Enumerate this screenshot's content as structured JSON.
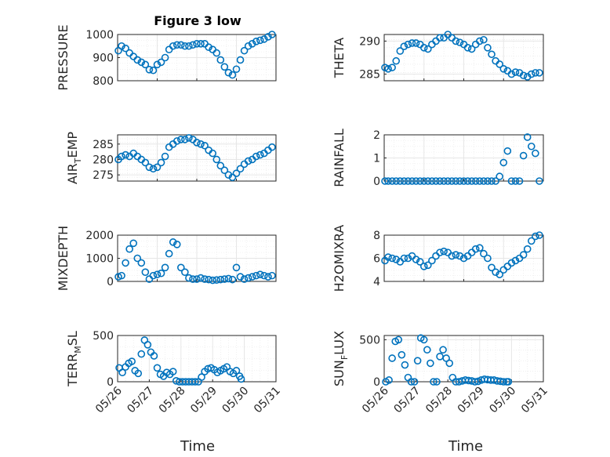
{
  "figure": {
    "title": "Figure 3 low",
    "xlabel": "Time"
  },
  "colors": {
    "marker": "#0072BD",
    "grid": "#E6E6E6",
    "axis": "#262626"
  },
  "chart_data": [
    {
      "type": "scatter",
      "ylabel": "PRESSURE",
      "ylim": [
        800,
        1000
      ],
      "yticks": [
        "800",
        "900",
        "1000"
      ],
      "xlim": [
        0,
        4
      ],
      "grid": true,
      "x": [
        0.02,
        0.1,
        0.2,
        0.3,
        0.4,
        0.5,
        0.6,
        0.7,
        0.8,
        0.9,
        1.0,
        1.1,
        1.2,
        1.3,
        1.4,
        1.5,
        1.6,
        1.7,
        1.8,
        1.9,
        2.0,
        2.1,
        2.2,
        2.3,
        2.4,
        2.5,
        2.6,
        2.7,
        2.8,
        2.9,
        3.0,
        3.1,
        3.2,
        3.3,
        3.4,
        3.5,
        3.6,
        3.7,
        3.8,
        3.9
      ],
      "y": [
        930,
        950,
        940,
        920,
        905,
        890,
        880,
        870,
        848,
        845,
        870,
        880,
        900,
        935,
        950,
        955,
        955,
        950,
        950,
        955,
        960,
        960,
        960,
        945,
        935,
        920,
        890,
        860,
        835,
        825,
        850,
        890,
        930,
        950,
        960,
        970,
        975,
        980,
        990,
        1000
      ]
    },
    {
      "type": "scatter",
      "ylabel": "THETA",
      "ylim": [
        284,
        291
      ],
      "yticks": [
        "285",
        "290"
      ],
      "xlim": [
        0,
        4
      ],
      "grid": true,
      "x": [
        0.02,
        0.1,
        0.2,
        0.3,
        0.4,
        0.5,
        0.6,
        0.7,
        0.8,
        0.9,
        1.0,
        1.1,
        1.2,
        1.3,
        1.4,
        1.5,
        1.6,
        1.7,
        1.8,
        1.9,
        2.0,
        2.1,
        2.2,
        2.3,
        2.4,
        2.5,
        2.6,
        2.7,
        2.8,
        2.9,
        3.0,
        3.1,
        3.2,
        3.3,
        3.4,
        3.5,
        3.6,
        3.7,
        3.8,
        3.9
      ],
      "y": [
        286,
        285.8,
        286,
        287,
        288.5,
        289.2,
        289.5,
        289.7,
        289.7,
        289.5,
        289,
        288.8,
        289.5,
        290,
        290.5,
        290.5,
        291,
        290.5,
        290,
        289.8,
        289.5,
        289,
        288.8,
        289.5,
        290,
        290.2,
        289,
        288,
        287,
        286.5,
        285.8,
        285.5,
        285,
        285.3,
        285.2,
        284.8,
        284.6,
        285,
        285.2,
        285.2
      ]
    },
    {
      "type": "scatter",
      "ylabel": "AIR_TEMP",
      "ylim": [
        273,
        288
      ],
      "yticks": [
        "275",
        "280",
        "285"
      ],
      "xlim": [
        0,
        4
      ],
      "grid": true,
      "x": [
        0.02,
        0.1,
        0.2,
        0.3,
        0.4,
        0.5,
        0.6,
        0.7,
        0.8,
        0.9,
        1.0,
        1.1,
        1.2,
        1.3,
        1.4,
        1.5,
        1.6,
        1.7,
        1.8,
        1.9,
        2.0,
        2.1,
        2.2,
        2.3,
        2.4,
        2.5,
        2.6,
        2.7,
        2.8,
        2.9,
        3.0,
        3.1,
        3.2,
        3.3,
        3.4,
        3.5,
        3.6,
        3.7,
        3.8,
        3.9
      ],
      "y": [
        280,
        281,
        281.5,
        281,
        282,
        281,
        280,
        279,
        277.5,
        277,
        277.5,
        279,
        281,
        284,
        285,
        286,
        286.5,
        286.5,
        287,
        286.5,
        285.5,
        285,
        284.5,
        283,
        282,
        280,
        278,
        276.5,
        275,
        274.2,
        275.5,
        277,
        278.5,
        279.5,
        280,
        281,
        281.5,
        282,
        283,
        284
      ]
    },
    {
      "type": "scatter",
      "ylabel": "RAINFALL",
      "ylim": [
        0,
        2
      ],
      "yticks": [
        "0",
        "1",
        "2"
      ],
      "xlim": [
        0,
        4
      ],
      "grid": true,
      "x": [
        0.02,
        0.1,
        0.2,
        0.3,
        0.4,
        0.5,
        0.6,
        0.7,
        0.8,
        0.9,
        1.0,
        1.1,
        1.2,
        1.3,
        1.4,
        1.5,
        1.6,
        1.7,
        1.8,
        1.9,
        2.0,
        2.1,
        2.2,
        2.3,
        2.4,
        2.5,
        2.6,
        2.7,
        2.8,
        2.9,
        3.0,
        3.1,
        3.2,
        3.3,
        3.4,
        3.5,
        3.6,
        3.7,
        3.8,
        3.9
      ],
      "y": [
        0,
        0,
        0,
        0,
        0,
        0,
        0,
        0,
        0,
        0,
        0,
        0,
        0,
        0,
        0,
        0,
        0,
        0,
        0,
        0,
        0,
        0,
        0,
        0,
        0,
        0,
        0,
        0,
        0,
        0.2,
        0.8,
        1.3,
        0,
        0,
        0,
        1.1,
        1.9,
        1.5,
        1.2,
        0
      ]
    },
    {
      "type": "scatter",
      "ylabel": "MIXDEPTH",
      "ylim": [
        0,
        2000
      ],
      "yticks": [
        "0",
        "1000",
        "2000"
      ],
      "xlim": [
        0,
        4
      ],
      "grid": true,
      "x": [
        0.02,
        0.1,
        0.2,
        0.3,
        0.4,
        0.5,
        0.6,
        0.7,
        0.8,
        0.9,
        1.0,
        1.1,
        1.2,
        1.3,
        1.4,
        1.5,
        1.6,
        1.7,
        1.8,
        1.9,
        2.0,
        2.1,
        2.2,
        2.3,
        2.4,
        2.5,
        2.6,
        2.7,
        2.8,
        2.9,
        3.0,
        3.1,
        3.2,
        3.3,
        3.4,
        3.5,
        3.6,
        3.7,
        3.8,
        3.9
      ],
      "y": [
        200,
        250,
        800,
        1400,
        1650,
        1000,
        800,
        400,
        100,
        250,
        300,
        350,
        600,
        1200,
        1700,
        1600,
        600,
        400,
        150,
        100,
        100,
        150,
        100,
        80,
        50,
        60,
        80,
        100,
        120,
        80,
        600,
        200,
        100,
        150,
        200,
        250,
        300,
        250,
        200,
        250
      ]
    },
    {
      "type": "scatter",
      "ylabel": "H2OMIXRA",
      "ylim": [
        4,
        8
      ],
      "yticks": [
        "4",
        "6",
        "8"
      ],
      "xlim": [
        0,
        4
      ],
      "grid": true,
      "x": [
        0.02,
        0.1,
        0.2,
        0.3,
        0.4,
        0.5,
        0.6,
        0.7,
        0.8,
        0.9,
        1.0,
        1.1,
        1.2,
        1.3,
        1.4,
        1.5,
        1.6,
        1.7,
        1.8,
        1.9,
        2.0,
        2.1,
        2.2,
        2.3,
        2.4,
        2.5,
        2.6,
        2.7,
        2.8,
        2.9,
        3.0,
        3.1,
        3.2,
        3.3,
        3.4,
        3.5,
        3.6,
        3.7,
        3.8,
        3.9
      ],
      "y": [
        5.8,
        6.1,
        6,
        5.9,
        5.7,
        6,
        6,
        6.2,
        5.9,
        5.7,
        5.3,
        5.4,
        5.8,
        6.2,
        6.5,
        6.6,
        6.5,
        6.2,
        6.3,
        6.2,
        6,
        6.2,
        6.5,
        6.8,
        6.9,
        6.4,
        6,
        5.2,
        4.8,
        4.6,
        5,
        5.3,
        5.6,
        5.8,
        6,
        6.3,
        6.8,
        7.5,
        7.9,
        8
      ]
    },
    {
      "type": "scatter",
      "ylabel": "TERR_MSL",
      "ylim": [
        0,
        500
      ],
      "yticks": [
        "0",
        "500"
      ],
      "xlim": [
        0,
        5
      ],
      "grid": true,
      "xticks": [
        "05/26",
        "05/27",
        "05/28",
        "05/29",
        "05/30",
        "05/31"
      ],
      "x": [
        0.05,
        0.15,
        0.25,
        0.35,
        0.45,
        0.55,
        0.65,
        0.75,
        0.85,
        0.95,
        1.05,
        1.15,
        1.25,
        1.35,
        1.45,
        1.55,
        1.65,
        1.75,
        1.85,
        1.95,
        2.05,
        2.15,
        2.25,
        2.35,
        2.45,
        2.55,
        2.65,
        2.75,
        2.85,
        2.95,
        3.05,
        3.15,
        3.25,
        3.35,
        3.45,
        3.55,
        3.65,
        3.75,
        3.85,
        3.9
      ],
      "y": [
        150,
        100,
        160,
        200,
        220,
        120,
        90,
        300,
        450,
        400,
        320,
        280,
        150,
        80,
        60,
        100,
        80,
        110,
        10,
        0,
        0,
        0,
        0,
        0,
        0,
        0,
        50,
        110,
        140,
        150,
        130,
        100,
        120,
        140,
        160,
        110,
        90,
        120,
        60,
        30
      ]
    },
    {
      "type": "scatter",
      "ylabel": "SUN_FLUX",
      "ylim": [
        0,
        550
      ],
      "yticks": [
        "0",
        "500"
      ],
      "xlim": [
        0,
        5
      ],
      "grid": true,
      "xticks": [
        "05/26",
        "05/27",
        "05/28",
        "05/29",
        "05/30",
        "05/31"
      ],
      "x": [
        0.05,
        0.15,
        0.25,
        0.35,
        0.45,
        0.55,
        0.65,
        0.75,
        0.85,
        0.95,
        1.05,
        1.15,
        1.25,
        1.35,
        1.45,
        1.55,
        1.65,
        1.75,
        1.85,
        1.95,
        2.05,
        2.15,
        2.25,
        2.35,
        2.45,
        2.55,
        2.65,
        2.75,
        2.85,
        2.95,
        3.05,
        3.15,
        3.25,
        3.35,
        3.45,
        3.55,
        3.65,
        3.75,
        3.85,
        3.9
      ],
      "y": [
        0,
        20,
        280,
        480,
        500,
        320,
        200,
        50,
        0,
        0,
        250,
        520,
        500,
        380,
        220,
        0,
        0,
        300,
        380,
        280,
        220,
        50,
        0,
        0,
        10,
        20,
        15,
        10,
        0,
        5,
        20,
        30,
        25,
        20,
        20,
        10,
        5,
        0,
        0,
        0
      ]
    }
  ]
}
